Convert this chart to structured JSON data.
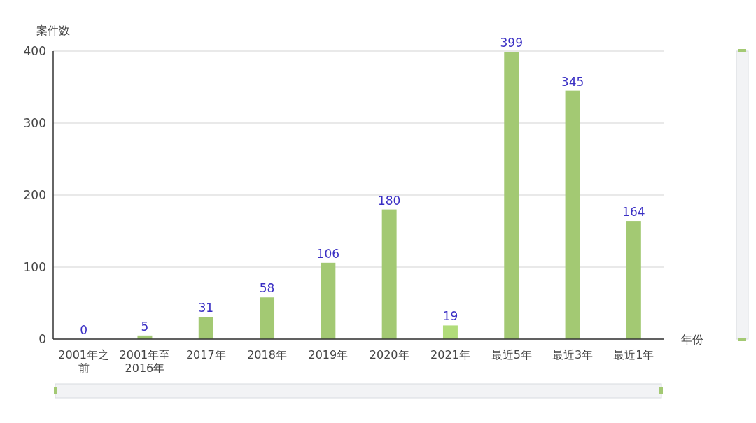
{
  "chart_data": {
    "type": "bar",
    "xlabel": "年份",
    "ylabel": "案件数",
    "categories": [
      "2001年之前",
      "2001年至2016年",
      "2017年",
      "2018年",
      "2019年",
      "2020年",
      "2021年",
      "最近5年",
      "最近3年",
      "最近1年"
    ],
    "values": [
      0,
      5,
      31,
      58,
      106,
      180,
      19,
      399,
      345,
      164
    ],
    "colors": [
      "#a3c973",
      "#a3c973",
      "#a3c973",
      "#a3c973",
      "#a3c973",
      "#a3c973",
      "#b1dc7a",
      "#a3c973",
      "#a3c973",
      "#a3c973"
    ],
    "ylim": [
      0,
      400
    ],
    "yticks": [
      0,
      100,
      200,
      300,
      400
    ],
    "grid": "y",
    "data_labels": true
  }
}
